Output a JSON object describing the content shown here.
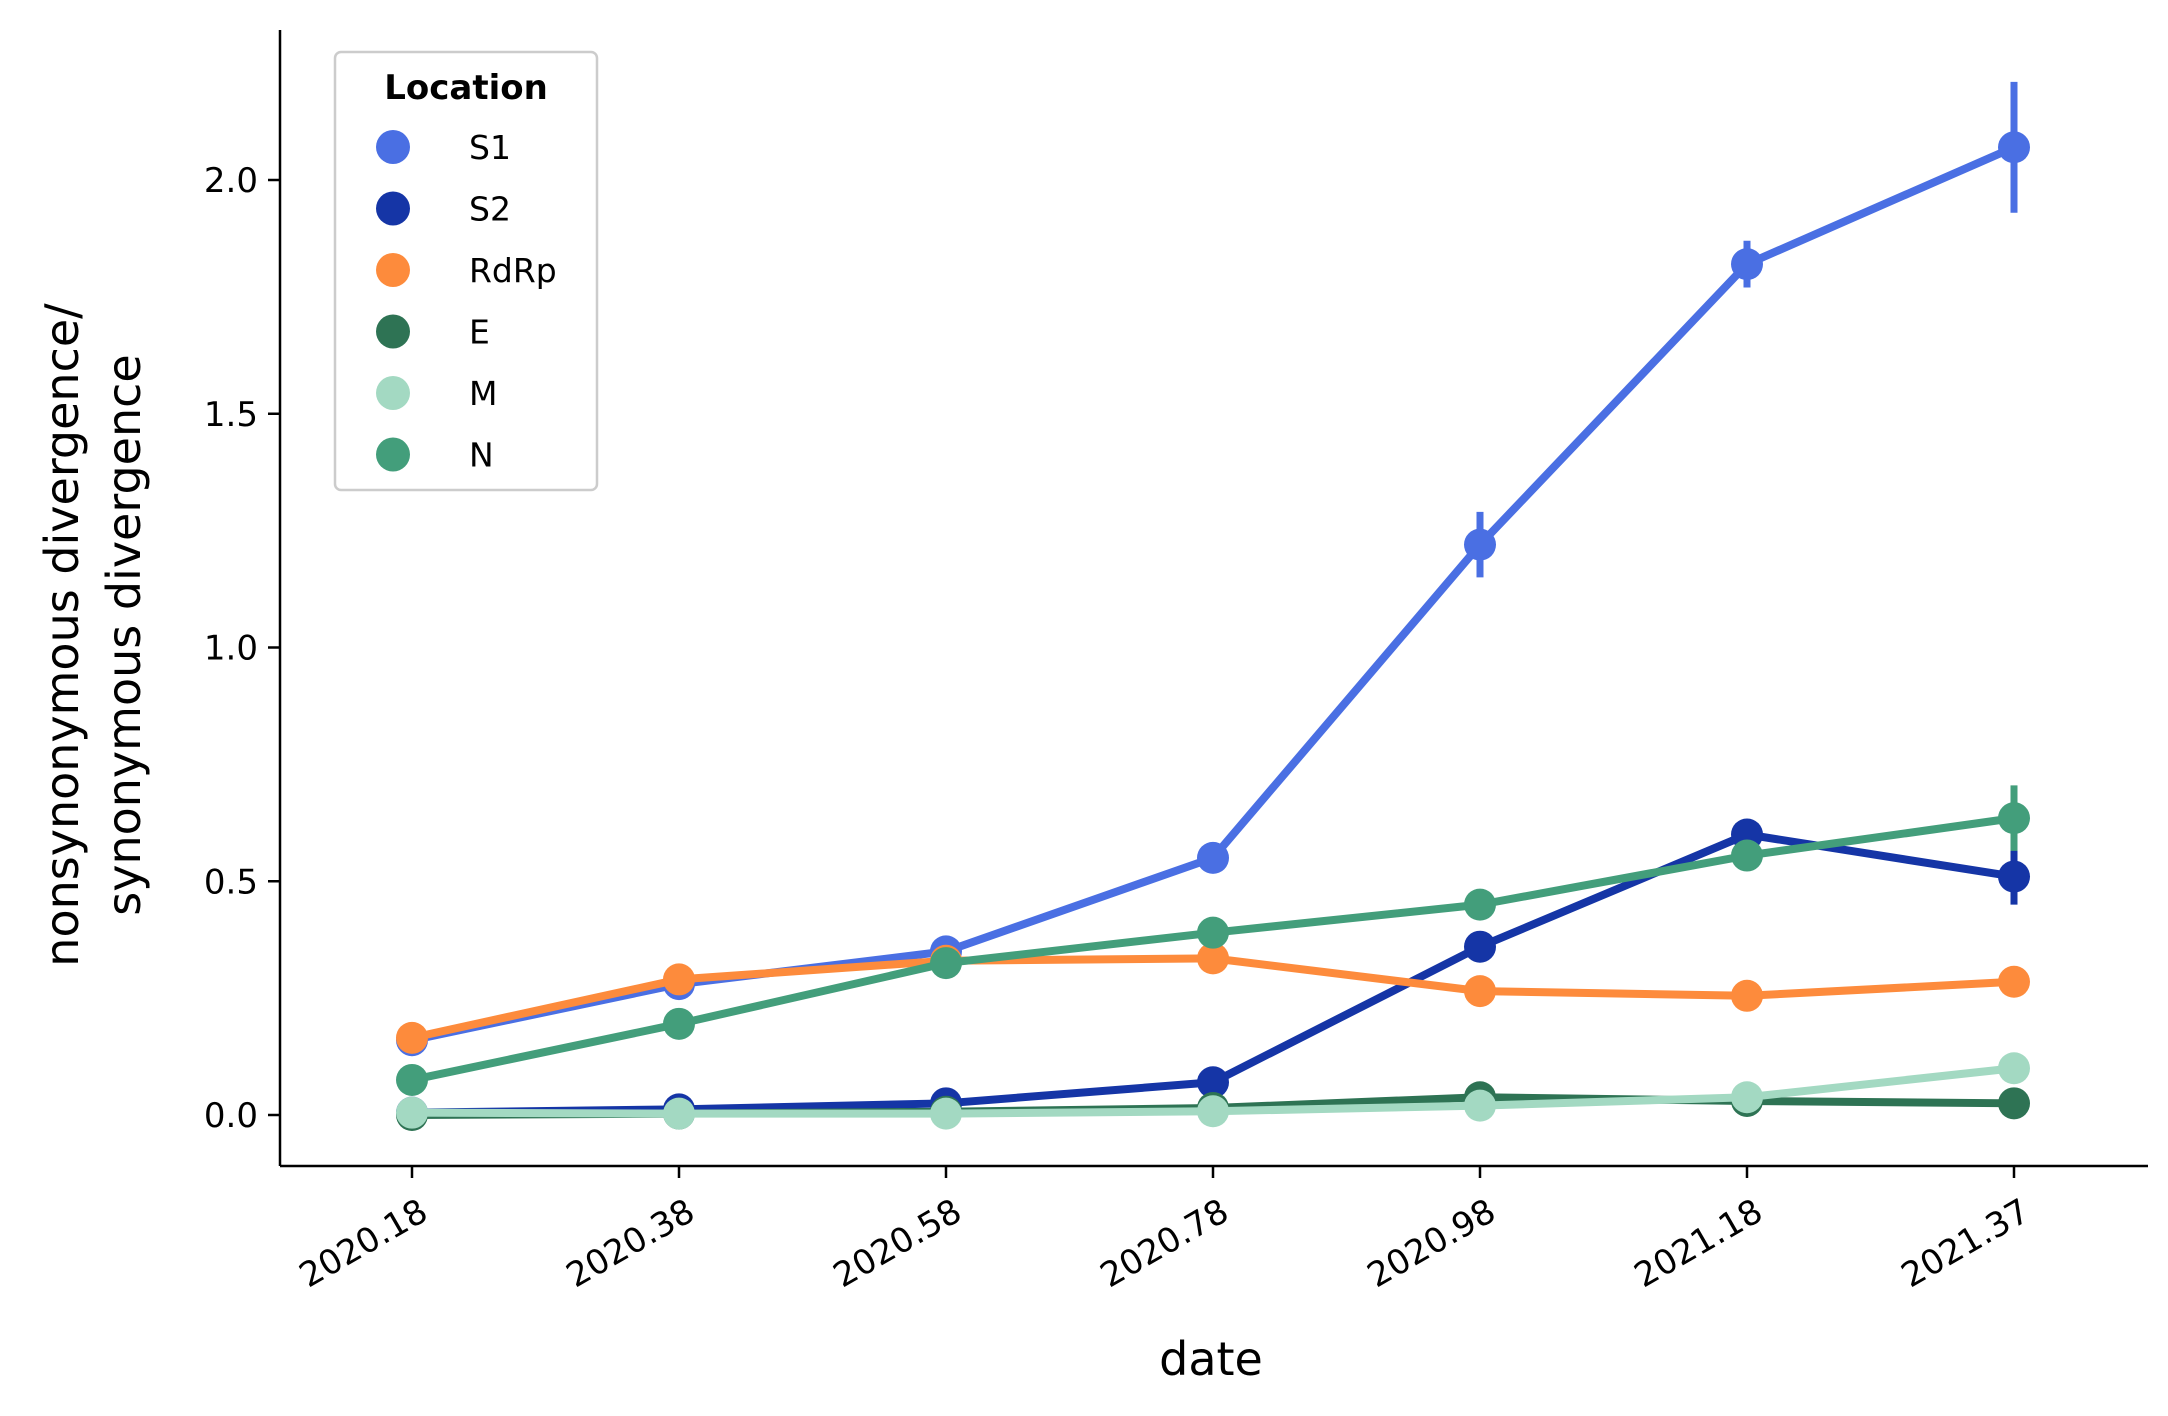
{
  "chart_data": {
    "type": "line",
    "xlabel": "date",
    "ylabel_lines": [
      "nonsynonymous divergence/",
      "synonymous divergence"
    ],
    "categories": [
      "2020.18",
      "2020.38",
      "2020.58",
      "2020.78",
      "2020.98",
      "2021.18",
      "2021.37"
    ],
    "y_ticks": [
      "0.0",
      "0.5",
      "1.0",
      "1.5",
      "2.0"
    ],
    "y_tick_values": [
      0,
      0.5,
      1.0,
      1.5,
      2.0
    ],
    "ylim": [
      -0.11,
      2.32
    ],
    "grid": false,
    "legend": {
      "title": "Location",
      "placement": "top-left"
    },
    "series": [
      {
        "name": "S1",
        "color": "#4a6fe3",
        "values": [
          0.16,
          0.28,
          0.35,
          0.55,
          1.22,
          1.82,
          2.07
        ],
        "errors": [
          0.01,
          0.01,
          0.01,
          0.02,
          0.07,
          0.05,
          0.14
        ]
      },
      {
        "name": "S2",
        "color": "#1535a6",
        "values": [
          0.005,
          0.012,
          0.025,
          0.07,
          0.36,
          0.6,
          0.51
        ],
        "errors": [
          0,
          0,
          0,
          0.01,
          0.015,
          0.015,
          0.06
        ]
      },
      {
        "name": "RdRp",
        "color": "#fd8b3c",
        "values": [
          0.165,
          0.29,
          0.33,
          0.335,
          0.265,
          0.255,
          0.285
        ],
        "errors": [
          0.005,
          0.005,
          0.005,
          0.005,
          0.005,
          0.005,
          0.005
        ]
      },
      {
        "name": "E",
        "color": "#2e7354",
        "values": [
          0.0,
          0.003,
          0.007,
          0.015,
          0.038,
          0.03,
          0.025
        ],
        "errors": [
          0,
          0,
          0,
          0,
          0,
          0,
          0
        ]
      },
      {
        "name": "M",
        "color": "#a3d9c2",
        "values": [
          0.005,
          0.003,
          0.003,
          0.008,
          0.02,
          0.038,
          0.1
        ],
        "errors": [
          0,
          0,
          0,
          0,
          0,
          0,
          0
        ]
      },
      {
        "name": "N",
        "color": "#439e7b",
        "values": [
          0.075,
          0.195,
          0.325,
          0.39,
          0.45,
          0.555,
          0.635
        ],
        "errors": [
          0,
          0,
          0,
          0.005,
          0.01,
          0.01,
          0.07
        ]
      }
    ]
  }
}
